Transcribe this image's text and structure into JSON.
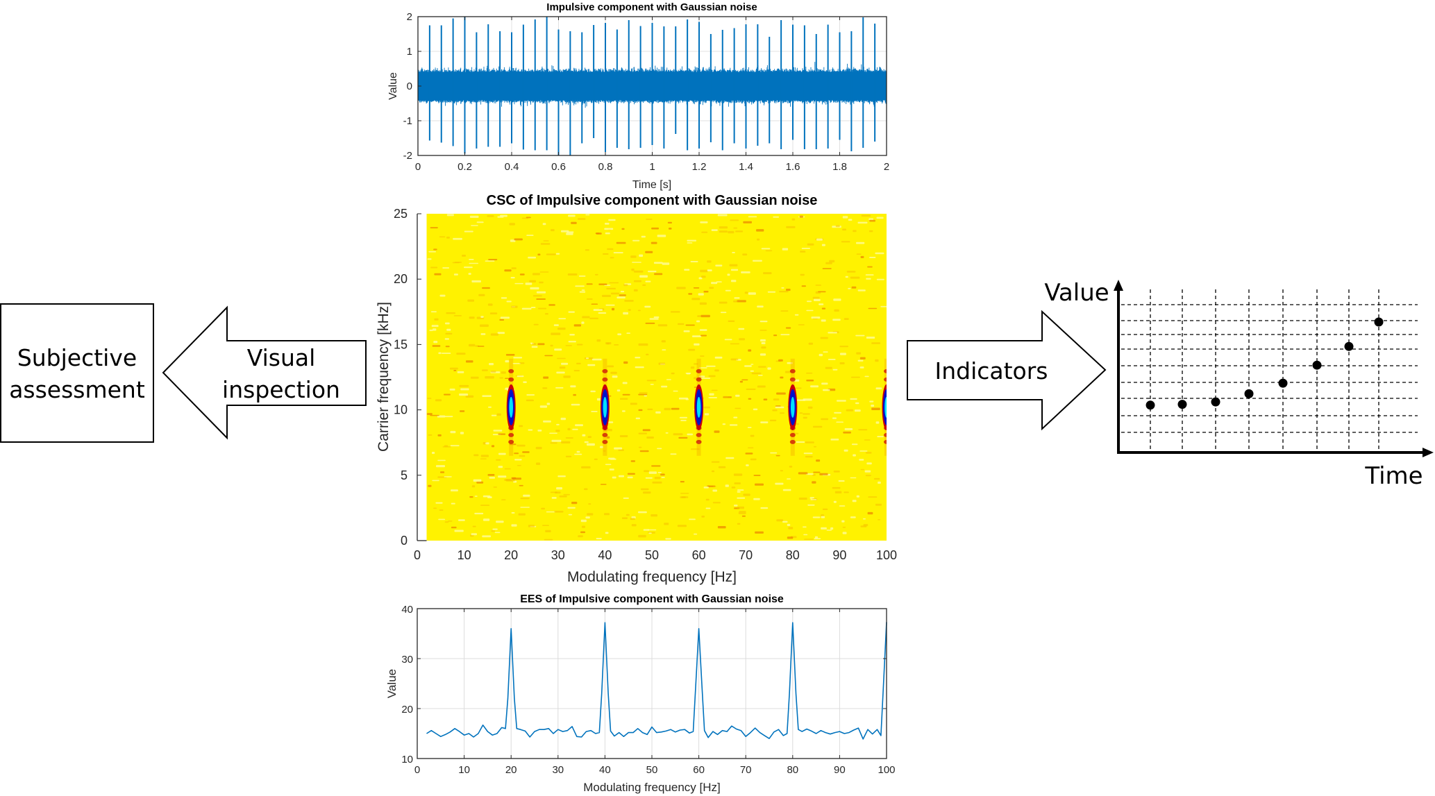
{
  "flow": {
    "left_box_label": [
      "Subjective",
      "assessment"
    ],
    "left_arrow_label": [
      "Visual",
      "inspection"
    ],
    "right_arrow_label": "Indicators",
    "trend_chart": {
      "y_label": "Value",
      "x_label": "Time",
      "points": [
        1.2,
        1.25,
        1.4,
        1.9,
        2.55,
        3.65,
        4.8,
        6.3
      ],
      "grid_rows": 9,
      "grid_cols": 8
    }
  },
  "colors": {
    "signal_blue": "#0072bd",
    "heat_yellow": "#fff200",
    "heat_orange": "#f7a800",
    "heat_red": "#c8000a",
    "heat_blue": "#0010c8",
    "heat_cyan": "#00e0ff",
    "diagram_stroke": "#000000"
  },
  "chart_data": [
    {
      "id": "time_signal",
      "type": "line",
      "title": "Impulsive component with Gaussian noise",
      "xlabel": "Time [s]",
      "ylabel": "Value",
      "xlim": [
        0,
        2
      ],
      "ylim": [
        -2,
        2
      ],
      "xticks": [
        "0",
        "0.2",
        "0.4",
        "0.6",
        "0.8",
        "1",
        "1.2",
        "1.4",
        "1.6",
        "1.8",
        "2"
      ],
      "yticks": [
        "-2",
        "-1",
        "0",
        "1",
        "2"
      ],
      "grid": true,
      "noise_band": [
        -0.4,
        0.4
      ],
      "impulse_period_s": 0.05,
      "impulse_times": [
        0.05,
        0.1,
        0.15,
        0.2,
        0.25,
        0.3,
        0.35,
        0.4,
        0.45,
        0.5,
        0.55,
        0.6,
        0.65,
        0.7,
        0.75,
        0.8,
        0.85,
        0.9,
        0.95,
        1.0,
        1.05,
        1.1,
        1.15,
        1.2,
        1.25,
        1.3,
        1.35,
        1.4,
        1.45,
        1.5,
        1.55,
        1.6,
        1.65,
        1.7,
        1.75,
        1.8,
        1.85,
        1.9,
        1.95
      ],
      "impulse_max": [
        1.75,
        1.75,
        1.95,
        2.0,
        1.55,
        1.78,
        1.58,
        1.55,
        1.77,
        1.92,
        2.05,
        1.63,
        1.58,
        1.55,
        1.76,
        1.82,
        1.63,
        1.9,
        1.73,
        1.82,
        1.72,
        1.72,
        1.92,
        1.85,
        1.5,
        1.62,
        1.67,
        1.78,
        1.78,
        1.42,
        1.9,
        1.77,
        1.75,
        1.5,
        1.77,
        1.55,
        1.58,
        1.98,
        1.8
      ],
      "impulse_min": [
        -1.57,
        -1.63,
        -1.73,
        -1.95,
        -1.8,
        -1.75,
        -1.75,
        -1.65,
        -1.83,
        -1.85,
        -1.85,
        -2.0,
        -2.0,
        -1.65,
        -1.5,
        -1.9,
        -1.78,
        -1.82,
        -1.78,
        -1.7,
        -1.8,
        -1.38,
        -1.85,
        -1.8,
        -1.62,
        -1.85,
        -1.65,
        -1.8,
        -1.72,
        -1.65,
        -1.82,
        -1.55,
        -1.82,
        -1.82,
        -1.8,
        -1.55,
        -1.88,
        -1.78,
        -1.6
      ]
    },
    {
      "id": "csc",
      "type": "heatmap",
      "title": "CSC of Impulsive component with Gaussian noise",
      "xlabel": "Modulating frequency [Hz]",
      "ylabel": "Carrier frequency [kHz]",
      "xlim": [
        0,
        100
      ],
      "ylim": [
        0,
        25
      ],
      "x_data_start": 2,
      "xticks": [
        "0",
        "10",
        "20",
        "30",
        "40",
        "50",
        "60",
        "70",
        "80",
        "90",
        "100"
      ],
      "yticks": [
        "0",
        "5",
        "10",
        "15",
        "20",
        "25"
      ],
      "hotspots": [
        {
          "mod_freq_hz": 20,
          "carrier_khz": 10.2
        },
        {
          "mod_freq_hz": 40,
          "carrier_khz": 10.2
        },
        {
          "mod_freq_hz": 60,
          "carrier_khz": 10.2
        },
        {
          "mod_freq_hz": 80,
          "carrier_khz": 10.2
        },
        {
          "mod_freq_hz": 100,
          "carrier_khz": 10.2
        }
      ],
      "colormap": "jet-reversed (yellow background, red/blue/cyan peaks)"
    },
    {
      "id": "ees",
      "type": "line",
      "title": "EES of Impulsive component with Gaussian noise",
      "xlabel": "Modulating frequency [Hz]",
      "ylabel": "Value",
      "xlim": [
        0,
        100
      ],
      "ylim": [
        10,
        40
      ],
      "xticks": [
        "0",
        "10",
        "20",
        "30",
        "40",
        "50",
        "60",
        "70",
        "80",
        "90",
        "100"
      ],
      "yticks": [
        "10",
        "20",
        "30",
        "40"
      ],
      "grid": true,
      "series": [
        {
          "name": "EES",
          "x": [
            2,
            3,
            4,
            5,
            6,
            7,
            8,
            9,
            10,
            11,
            12,
            13,
            14,
            15,
            16,
            17,
            18,
            18.8,
            19.3,
            20,
            20.7,
            21.2,
            22,
            23,
            24,
            25,
            26,
            27,
            28,
            29,
            30,
            31,
            32,
            33,
            34,
            35,
            36,
            37,
            38,
            38.8,
            39.3,
            40,
            40.7,
            41.2,
            42,
            43,
            44,
            45,
            46,
            47,
            48,
            49,
            50,
            51,
            52,
            53,
            54,
            55,
            56,
            57,
            58,
            58.8,
            59.3,
            60,
            60.7,
            61.2,
            62,
            63,
            64,
            65,
            66,
            67,
            68,
            69,
            70,
            71,
            72,
            73,
            74,
            75,
            76,
            77,
            78,
            78.8,
            79.3,
            80,
            80.7,
            81.2,
            82,
            83,
            84,
            85,
            86,
            87,
            88,
            89,
            90,
            91,
            92,
            93,
            94,
            95,
            96,
            97,
            98,
            98.8,
            99.3,
            100
          ],
          "y": [
            15.0,
            15.6,
            15.0,
            14.4,
            14.8,
            15.3,
            16.0,
            15.4,
            14.7,
            15.0,
            14.3,
            15.0,
            16.7,
            15.4,
            14.7,
            15.0,
            16.2,
            16.0,
            22.0,
            36.0,
            22.0,
            16.0,
            15.8,
            15.5,
            14.3,
            15.4,
            15.8,
            15.8,
            16.0,
            15.0,
            15.8,
            15.4,
            15.6,
            16.4,
            14.4,
            14.3,
            15.4,
            15.6,
            15.0,
            15.2,
            23.0,
            37.2,
            23.0,
            15.5,
            14.5,
            15.2,
            14.4,
            15.2,
            15.2,
            16.0,
            15.2,
            14.8,
            16.3,
            15.2,
            15.3,
            15.5,
            15.8,
            15.3,
            15.7,
            15.8,
            15.1,
            15.4,
            24.0,
            36.0,
            24.0,
            15.6,
            14.2,
            15.4,
            14.8,
            15.6,
            15.4,
            16.5,
            15.9,
            15.6,
            14.4,
            15.2,
            16.1,
            15.2,
            14.6,
            14.0,
            15.3,
            15.8,
            14.6,
            15.0,
            23.0,
            37.2,
            23.0,
            15.8,
            15.4,
            15.9,
            15.5,
            15.0,
            15.6,
            15.2,
            14.9,
            15.2,
            15.4,
            15.0,
            15.2,
            15.7,
            16.1,
            13.9,
            15.8,
            14.9,
            15.8,
            14.6,
            24.0,
            37.3
          ]
        }
      ]
    }
  ]
}
